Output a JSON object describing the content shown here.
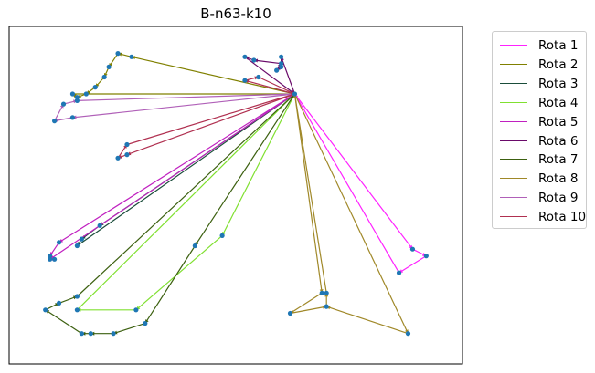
{
  "chart_data": {
    "type": "line",
    "title": "B-n63-k10",
    "xlabel": "",
    "ylabel": "",
    "axes_visible": false,
    "grid": false,
    "legend_placement": "outside-upper-right",
    "xlim": [
      0,
      100
    ],
    "ylim": [
      0,
      100
    ],
    "depot": [
      63,
      80
    ],
    "series": [
      {
        "name": "Rota 1",
        "color": "#ff22ff",
        "points": [
          [
            63,
            80
          ],
          [
            89,
            34
          ],
          [
            92,
            32
          ],
          [
            86,
            27
          ],
          [
            63,
            80
          ]
        ]
      },
      {
        "name": "Rota 2",
        "color": "#808000",
        "points": [
          [
            63,
            80
          ],
          [
            27,
            91
          ],
          [
            24,
            92
          ],
          [
            22,
            88
          ],
          [
            21,
            85
          ],
          [
            19,
            82
          ],
          [
            17,
            80
          ],
          [
            15,
            79
          ],
          [
            14,
            80
          ],
          [
            63,
            80
          ]
        ]
      },
      {
        "name": "Rota 3",
        "color": "#1a4d3a",
        "points": [
          [
            63,
            80
          ],
          [
            20,
            41
          ],
          [
            16,
            37
          ],
          [
            15,
            35
          ],
          [
            63,
            80
          ]
        ]
      },
      {
        "name": "Rota 4",
        "color": "#80e030",
        "points": [
          [
            63,
            80
          ],
          [
            47,
            38
          ],
          [
            28,
            16
          ],
          [
            15,
            16
          ],
          [
            63,
            80
          ]
        ]
      },
      {
        "name": "Rota 5",
        "color": "#c020c0",
        "points": [
          [
            63,
            80
          ],
          [
            11,
            36
          ],
          [
            9,
            32
          ],
          [
            10,
            31
          ],
          [
            9,
            31
          ],
          [
            63,
            80
          ]
        ]
      },
      {
        "name": "Rota 6",
        "color": "#6a0a6a",
        "points": [
          [
            63,
            80
          ],
          [
            60,
            91
          ],
          [
            60,
            88
          ],
          [
            59,
            87
          ],
          [
            60,
            89
          ],
          [
            54,
            90
          ],
          [
            52,
            91
          ],
          [
            63,
            80
          ]
        ]
      },
      {
        "name": "Rota 7",
        "color": "#3c6010",
        "points": [
          [
            63,
            80
          ],
          [
            41,
            35
          ],
          [
            30,
            12
          ],
          [
            23,
            9
          ],
          [
            18,
            9
          ],
          [
            16,
            9
          ],
          [
            8,
            16
          ],
          [
            11,
            18
          ],
          [
            15,
            20
          ],
          [
            63,
            80
          ]
        ]
      },
      {
        "name": "Rota 8",
        "color": "#a08828",
        "points": [
          [
            63,
            80
          ],
          [
            69,
            21
          ],
          [
            62,
            15
          ],
          [
            70,
            17
          ],
          [
            70,
            21
          ],
          [
            63,
            80
          ],
          [
            88,
            9
          ],
          [
            70,
            17
          ]
        ]
      },
      {
        "name": "Rota 9",
        "color": "#b060b8",
        "points": [
          [
            63,
            80
          ],
          [
            14,
            73
          ],
          [
            10,
            72
          ],
          [
            12,
            77
          ],
          [
            15,
            78
          ],
          [
            63,
            80
          ]
        ]
      },
      {
        "name": "Rota 10",
        "color": "#b03050",
        "points": [
          [
            63,
            80
          ],
          [
            26,
            62
          ],
          [
            24,
            61
          ],
          [
            26,
            65
          ],
          [
            63,
            80
          ],
          [
            52,
            84
          ],
          [
            55,
            85
          ],
          [
            63,
            80
          ]
        ]
      }
    ]
  }
}
